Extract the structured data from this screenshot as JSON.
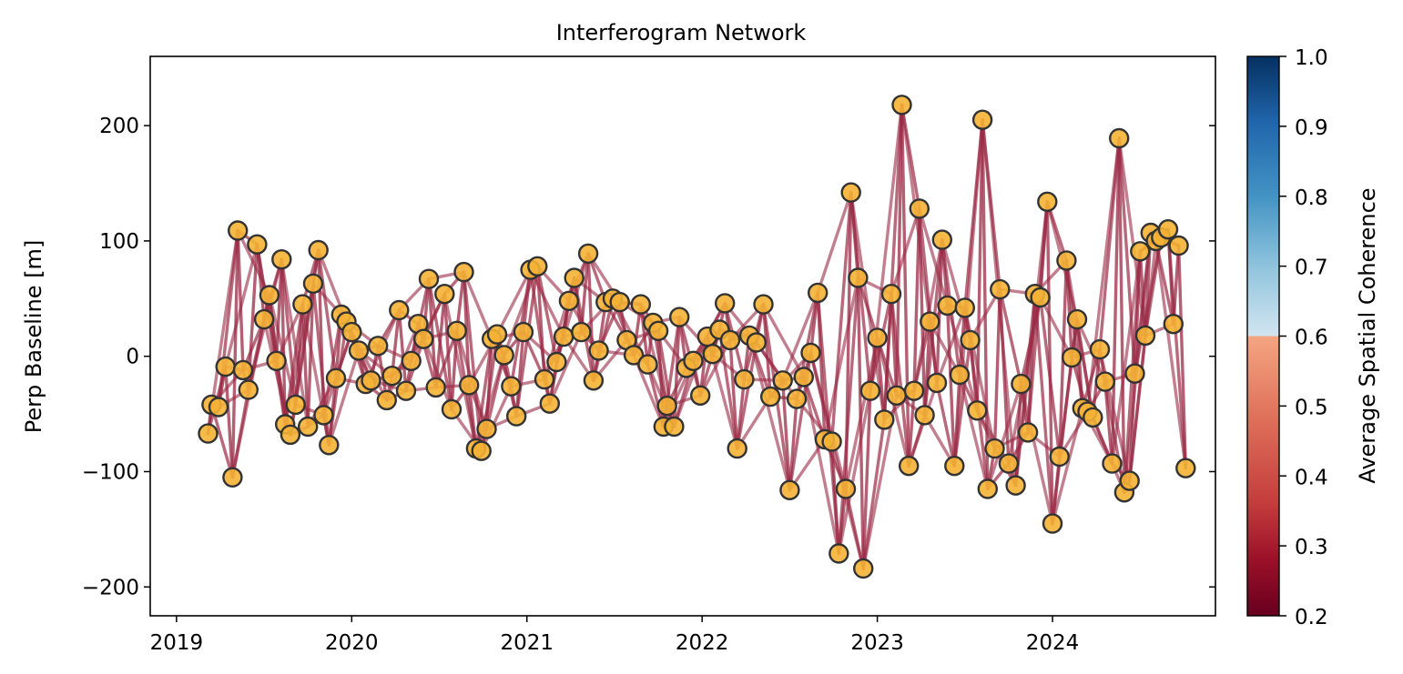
{
  "chart_data": {
    "type": "scatter",
    "title": "Interferogram Network",
    "xlabel": "",
    "ylabel": "Perp Baseline [m]",
    "xlim": [
      2018.85,
      2024.93
    ],
    "ylim": [
      -225,
      260
    ],
    "x_ticks": [
      2019,
      2020,
      2021,
      2022,
      2023,
      2024
    ],
    "x_tick_labels": [
      "2019",
      "2020",
      "2021",
      "2022",
      "2023",
      "2024"
    ],
    "y_ticks": [
      -200,
      -100,
      0,
      100,
      200
    ],
    "y_tick_labels": [
      "−200",
      "−100",
      "0",
      "100",
      "200"
    ],
    "grid": false,
    "colorbar": {
      "label": "Average Spatial Coherence",
      "range": [
        0.2,
        1.0
      ],
      "ticks": [
        0.2,
        0.3,
        0.4,
        0.5,
        0.6,
        0.7,
        0.8,
        0.9,
        1.0
      ],
      "tick_labels": [
        "0.2",
        "0.3",
        "0.4",
        "0.5",
        "0.6",
        "0.7",
        "0.8",
        "0.9",
        "1.0"
      ],
      "colormap": "RdBu"
    },
    "marker_color": "#f5b335",
    "marker_edge": "#333333",
    "line_color": "#9a2a45",
    "acquisitions": [
      [
        2019.18,
        -67
      ],
      [
        2019.2,
        -42
      ],
      [
        2019.24,
        -44
      ],
      [
        2019.28,
        -9
      ],
      [
        2019.32,
        -105
      ],
      [
        2019.35,
        109
      ],
      [
        2019.38,
        -12
      ],
      [
        2019.41,
        -29
      ],
      [
        2019.46,
        97
      ],
      [
        2019.5,
        32
      ],
      [
        2019.53,
        53
      ],
      [
        2019.57,
        -4
      ],
      [
        2019.6,
        84
      ],
      [
        2019.62,
        -59
      ],
      [
        2019.65,
        -68
      ],
      [
        2019.68,
        -42
      ],
      [
        2019.72,
        45
      ],
      [
        2019.75,
        -61
      ],
      [
        2019.78,
        63
      ],
      [
        2019.81,
        92
      ],
      [
        2019.84,
        -51
      ],
      [
        2019.87,
        -77
      ],
      [
        2019.91,
        -19
      ],
      [
        2019.94,
        36
      ],
      [
        2019.97,
        30
      ],
      [
        2020.0,
        21
      ],
      [
        2020.04,
        5
      ],
      [
        2020.08,
        -24
      ],
      [
        2020.11,
        -21
      ],
      [
        2020.15,
        9
      ],
      [
        2020.2,
        -38
      ],
      [
        2020.23,
        -17
      ],
      [
        2020.27,
        40
      ],
      [
        2020.31,
        -30
      ],
      [
        2020.34,
        -4
      ],
      [
        2020.38,
        28
      ],
      [
        2020.41,
        15
      ],
      [
        2020.44,
        67
      ],
      [
        2020.48,
        -27
      ],
      [
        2020.53,
        54
      ],
      [
        2020.57,
        -46
      ],
      [
        2020.6,
        22
      ],
      [
        2020.64,
        73
      ],
      [
        2020.67,
        -25
      ],
      [
        2020.71,
        -80
      ],
      [
        2020.74,
        -82
      ],
      [
        2020.77,
        -63
      ],
      [
        2020.8,
        15
      ],
      [
        2020.83,
        19
      ],
      [
        2020.87,
        1
      ],
      [
        2020.91,
        -26
      ],
      [
        2020.94,
        -52
      ],
      [
        2020.98,
        21
      ],
      [
        2021.02,
        75
      ],
      [
        2021.06,
        78
      ],
      [
        2021.1,
        -20
      ],
      [
        2021.13,
        -41
      ],
      [
        2021.17,
        -5
      ],
      [
        2021.21,
        17
      ],
      [
        2021.24,
        48
      ],
      [
        2021.27,
        68
      ],
      [
        2021.31,
        21
      ],
      [
        2021.35,
        89
      ],
      [
        2021.38,
        -21
      ],
      [
        2021.41,
        5
      ],
      [
        2021.45,
        47
      ],
      [
        2021.49,
        50
      ],
      [
        2021.53,
        47
      ],
      [
        2021.57,
        14
      ],
      [
        2021.61,
        1
      ],
      [
        2021.65,
        45
      ],
      [
        2021.69,
        -7
      ],
      [
        2021.72,
        29
      ],
      [
        2021.75,
        22
      ],
      [
        2021.78,
        -61
      ],
      [
        2021.8,
        -43
      ],
      [
        2021.84,
        -61
      ],
      [
        2021.87,
        34
      ],
      [
        2021.91,
        -10
      ],
      [
        2021.95,
        -4
      ],
      [
        2021.99,
        -34
      ],
      [
        2022.03,
        17
      ],
      [
        2022.06,
        2
      ],
      [
        2022.1,
        23
      ],
      [
        2022.13,
        46
      ],
      [
        2022.16,
        14
      ],
      [
        2022.2,
        -80
      ],
      [
        2022.24,
        -20
      ],
      [
        2022.27,
        18
      ],
      [
        2022.31,
        12
      ],
      [
        2022.35,
        45
      ],
      [
        2022.39,
        -35
      ],
      [
        2022.46,
        -21
      ],
      [
        2022.5,
        -116
      ],
      [
        2022.54,
        -37
      ],
      [
        2022.58,
        -18
      ],
      [
        2022.62,
        3
      ],
      [
        2022.66,
        55
      ],
      [
        2022.7,
        -72
      ],
      [
        2022.74,
        -74
      ],
      [
        2022.78,
        -171
      ],
      [
        2022.82,
        -115
      ],
      [
        2022.85,
        142
      ],
      [
        2022.89,
        68
      ],
      [
        2022.92,
        -184
      ],
      [
        2022.96,
        -30
      ],
      [
        2023.0,
        16
      ],
      [
        2023.04,
        -55
      ],
      [
        2023.08,
        54
      ],
      [
        2023.11,
        -34
      ],
      [
        2023.14,
        218
      ],
      [
        2023.18,
        -95
      ],
      [
        2023.21,
        -30
      ],
      [
        2023.24,
        128
      ],
      [
        2023.27,
        -51
      ],
      [
        2023.3,
        30
      ],
      [
        2023.34,
        -23
      ],
      [
        2023.37,
        101
      ],
      [
        2023.4,
        44
      ],
      [
        2023.44,
        -95
      ],
      [
        2023.47,
        -16
      ],
      [
        2023.5,
        42
      ],
      [
        2023.53,
        14
      ],
      [
        2023.57,
        -47
      ],
      [
        2023.6,
        205
      ],
      [
        2023.63,
        -115
      ],
      [
        2023.67,
        -80
      ],
      [
        2023.7,
        58
      ],
      [
        2023.75,
        -93
      ],
      [
        2023.79,
        -112
      ],
      [
        2023.82,
        -24
      ],
      [
        2023.86,
        -66
      ],
      [
        2023.9,
        54
      ],
      [
        2023.93,
        51
      ],
      [
        2023.97,
        134
      ],
      [
        2024.0,
        -145
      ],
      [
        2024.04,
        -87
      ],
      [
        2024.08,
        83
      ],
      [
        2024.11,
        -1
      ],
      [
        2024.14,
        32
      ],
      [
        2024.17,
        -45
      ],
      [
        2024.2,
        -48
      ],
      [
        2024.23,
        -53
      ],
      [
        2024.27,
        6
      ],
      [
        2024.3,
        -22
      ],
      [
        2024.34,
        -93
      ],
      [
        2024.38,
        189
      ],
      [
        2024.41,
        -118
      ],
      [
        2024.44,
        -108
      ],
      [
        2024.47,
        -15
      ],
      [
        2024.5,
        91
      ],
      [
        2024.53,
        18
      ],
      [
        2024.56,
        107
      ],
      [
        2024.59,
        100
      ],
      [
        2024.62,
        103
      ],
      [
        2024.66,
        110
      ],
      [
        2024.69,
        28
      ],
      [
        2024.72,
        96
      ],
      [
        2024.76,
        -97
      ]
    ]
  }
}
